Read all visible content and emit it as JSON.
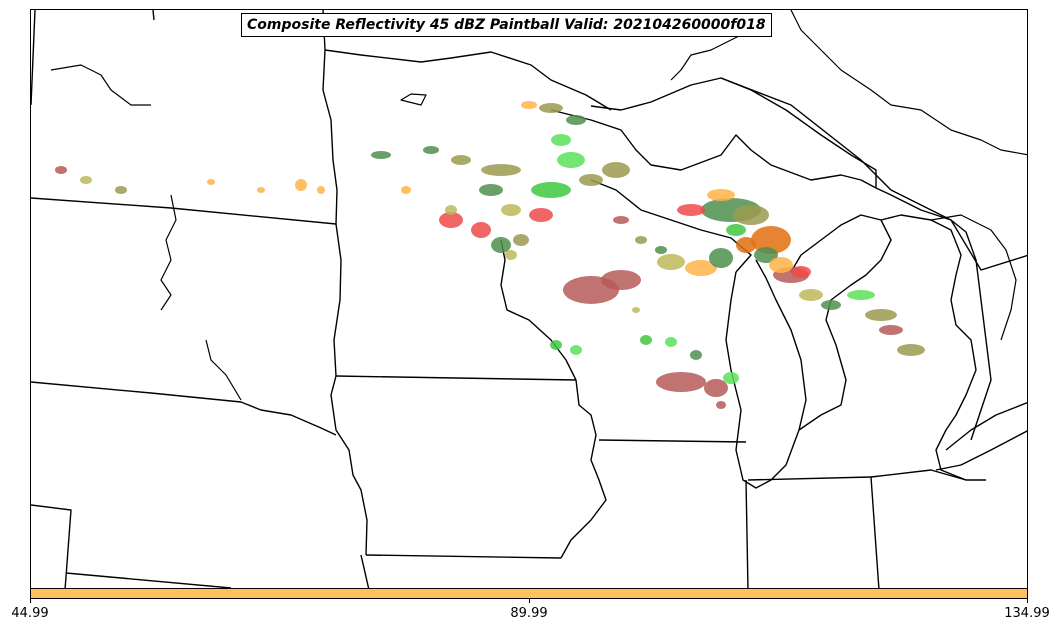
{
  "title": "Composite Reflectivity 45 dBZ Paintball Valid: 202104260000f018",
  "colorbar": {
    "color": "#ffc061",
    "ticks": [
      "44.99",
      "89.99",
      "134.99"
    ]
  },
  "colors": {
    "border": "#000000",
    "paint_red": "#f04a4a",
    "paint_green": "#3fc83f",
    "paint_lightgreen": "#5be05b",
    "paint_darkgreen": "#4e8f4e",
    "paint_olive": "#9c9a50",
    "paint_khaki": "#bdb95a",
    "paint_brownred": "#b55a58",
    "paint_orange": "#ffb347",
    "paint_darkorange": "#e07010"
  }
}
